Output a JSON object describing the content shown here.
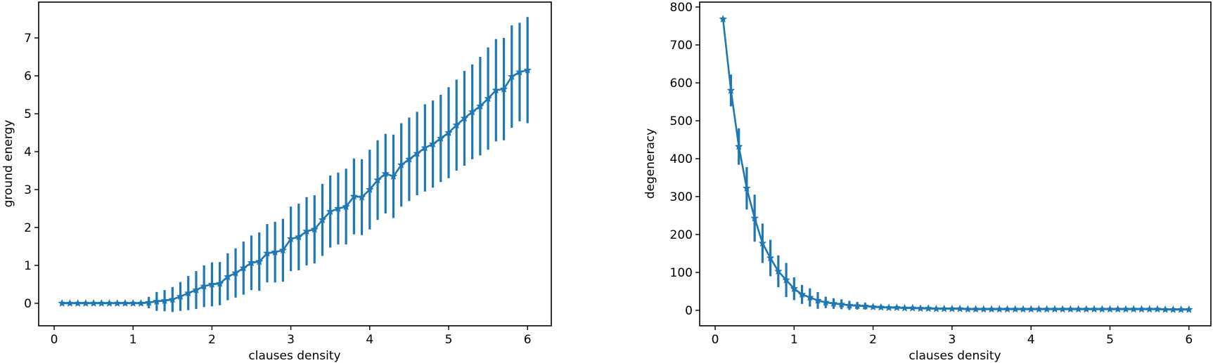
{
  "chart_data": [
    {
      "type": "line",
      "title": "",
      "xlabel": "clauses density",
      "ylabel": "ground energy",
      "xlim": [
        -0.2,
        6.3
      ],
      "ylim": [
        -0.6,
        7.9
      ],
      "xticks": [
        0,
        1,
        2,
        3,
        4,
        5,
        6
      ],
      "yticks": [
        0,
        1,
        2,
        3,
        4,
        5,
        6,
        7
      ],
      "grid": false,
      "marker": "star",
      "color": "#1f77b4",
      "x": [
        0.1,
        0.2,
        0.3,
        0.4,
        0.5,
        0.6,
        0.7,
        0.8,
        0.9,
        1.0,
        1.1,
        1.2,
        1.3,
        1.4,
        1.5,
        1.6,
        1.7,
        1.8,
        1.9,
        2.0,
        2.1,
        2.2,
        2.3,
        2.4,
        2.5,
        2.6,
        2.7,
        2.8,
        2.9,
        3.0,
        3.1,
        3.2,
        3.3,
        3.4,
        3.5,
        3.6,
        3.7,
        3.8,
        3.9,
        4.0,
        4.1,
        4.2,
        4.3,
        4.4,
        4.5,
        4.6,
        4.7,
        4.8,
        4.9,
        5.0,
        5.1,
        5.2,
        5.3,
        5.4,
        5.5,
        5.6,
        5.7,
        5.8,
        5.9,
        6.0
      ],
      "values": [
        0,
        0,
        0,
        0,
        0,
        0,
        0,
        0,
        0,
        0,
        0,
        0.02,
        0.05,
        0.07,
        0.1,
        0.18,
        0.27,
        0.35,
        0.45,
        0.5,
        0.52,
        0.7,
        0.8,
        0.93,
        1.07,
        1.1,
        1.32,
        1.35,
        1.4,
        1.7,
        1.75,
        1.9,
        1.95,
        2.2,
        2.42,
        2.5,
        2.55,
        2.82,
        2.8,
        3.0,
        3.25,
        3.42,
        3.35,
        3.65,
        3.8,
        3.95,
        4.1,
        4.2,
        4.35,
        4.5,
        4.7,
        4.88,
        5.05,
        5.2,
        5.4,
        5.62,
        5.65,
        5.98,
        6.1,
        6.15
      ],
      "errors": [
        0,
        0,
        0,
        0,
        0,
        0,
        0,
        0.02,
        0.05,
        0.05,
        0.05,
        0.15,
        0.25,
        0.28,
        0.33,
        0.38,
        0.45,
        0.5,
        0.55,
        0.58,
        0.57,
        0.62,
        0.65,
        0.7,
        0.72,
        0.77,
        0.77,
        0.8,
        0.83,
        0.85,
        0.88,
        0.9,
        0.9,
        0.95,
        0.95,
        0.95,
        1.0,
        1.0,
        1.0,
        1.05,
        1.05,
        1.05,
        1.1,
        1.1,
        1.1,
        1.1,
        1.15,
        1.15,
        1.15,
        1.2,
        1.2,
        1.25,
        1.25,
        1.3,
        1.35,
        1.35,
        1.35,
        1.35,
        1.3,
        1.4
      ]
    },
    {
      "type": "line",
      "title": "",
      "xlabel": "clauses density",
      "ylabel": "degeneracy",
      "xlim": [
        -0.2,
        6.3
      ],
      "ylim": [
        -40,
        805
      ],
      "xticks": [
        0,
        1,
        2,
        3,
        4,
        5,
        6
      ],
      "yticks": [
        0,
        100,
        200,
        300,
        400,
        500,
        600,
        700,
        800
      ],
      "grid": false,
      "marker": "star",
      "color": "#1f77b4",
      "x": [
        0.1,
        0.2,
        0.3,
        0.4,
        0.5,
        0.6,
        0.7,
        0.8,
        0.9,
        1.0,
        1.1,
        1.2,
        1.3,
        1.4,
        1.5,
        1.6,
        1.7,
        1.8,
        1.9,
        2.0,
        2.1,
        2.2,
        2.3,
        2.4,
        2.5,
        2.6,
        2.7,
        2.8,
        2.9,
        3.0,
        3.1,
        3.2,
        3.3,
        3.4,
        3.5,
        3.6,
        3.7,
        3.8,
        3.9,
        4.0,
        4.1,
        4.2,
        4.3,
        4.4,
        4.5,
        4.6,
        4.7,
        4.8,
        4.9,
        5.0,
        5.1,
        5.2,
        5.3,
        5.4,
        5.5,
        5.6,
        5.7,
        5.8,
        5.9,
        6.0
      ],
      "values": [
        768,
        580,
        432,
        322,
        243,
        177,
        138,
        103,
        80,
        57,
        42,
        34,
        26,
        21,
        18,
        16,
        13,
        12,
        11,
        9,
        8,
        7,
        7,
        6,
        6,
        5,
        5,
        4,
        4,
        4,
        4,
        3,
        3,
        3,
        3,
        3,
        3,
        3,
        3,
        3,
        3,
        3,
        3,
        3,
        3,
        3,
        3,
        3,
        3,
        3,
        3,
        3,
        3,
        3,
        3,
        3,
        2,
        2,
        2,
        2
      ],
      "errors": [
        0,
        42,
        48,
        56,
        62,
        52,
        48,
        42,
        45,
        30,
        25,
        24,
        22,
        15,
        14,
        13,
        12,
        10,
        9,
        6,
        5,
        4,
        4,
        3,
        3,
        3,
        2,
        2,
        2,
        2,
        2,
        2,
        2,
        2,
        2,
        2,
        2,
        2,
        2,
        2,
        2,
        2,
        2,
        2,
        2,
        2,
        2,
        2,
        2,
        2,
        2,
        2,
        2,
        2,
        2,
        2,
        2,
        2,
        2,
        2
      ]
    }
  ],
  "panels": [
    {
      "xlabel": "clauses density",
      "ylabel": "ground energy",
      "xtick_labels": [
        "0",
        "1",
        "2",
        "3",
        "4",
        "5",
        "6"
      ],
      "ytick_labels": [
        "0",
        "1",
        "2",
        "3",
        "4",
        "5",
        "6",
        "7"
      ]
    },
    {
      "xlabel": "clauses density",
      "ylabel": "degeneracy",
      "xtick_labels": [
        "0",
        "1",
        "2",
        "3",
        "4",
        "5",
        "6"
      ],
      "ytick_labels": [
        "0",
        "100",
        "200",
        "300",
        "400",
        "500",
        "600",
        "700",
        "800"
      ]
    }
  ]
}
